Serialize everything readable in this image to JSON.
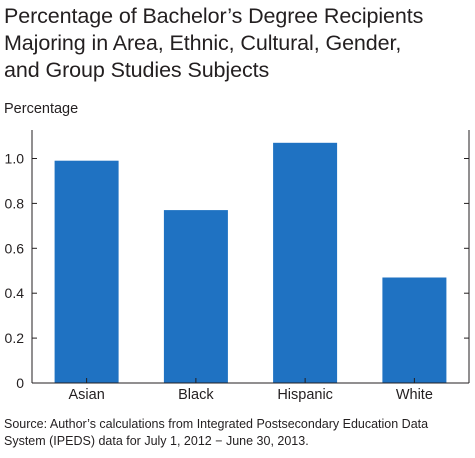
{
  "chart_data": {
    "type": "bar",
    "title": "Percentage of Bachelor’s Degree Recipients\nMajoring in Area, Ethnic, Cultural, Gender,\nand Group Studies Subjects",
    "ylabel": "Percentage",
    "xlabel": "",
    "categories": [
      "Asian",
      "Black",
      "Hispanic",
      "White"
    ],
    "values": [
      0.99,
      0.77,
      1.07,
      0.47
    ],
    "ylim": [
      0,
      1.1
    ],
    "yticks": [
      "0",
      "0.2",
      "0.4",
      "0.6",
      "0.8",
      "1.0"
    ],
    "bar_color": "#1f72c2",
    "grid": false,
    "legend": "none",
    "source": "Source: Author’s calculations from Integrated Postsecondary Education Data System (IPEDS) data for July 1, 2012 − June 30, 2013."
  }
}
